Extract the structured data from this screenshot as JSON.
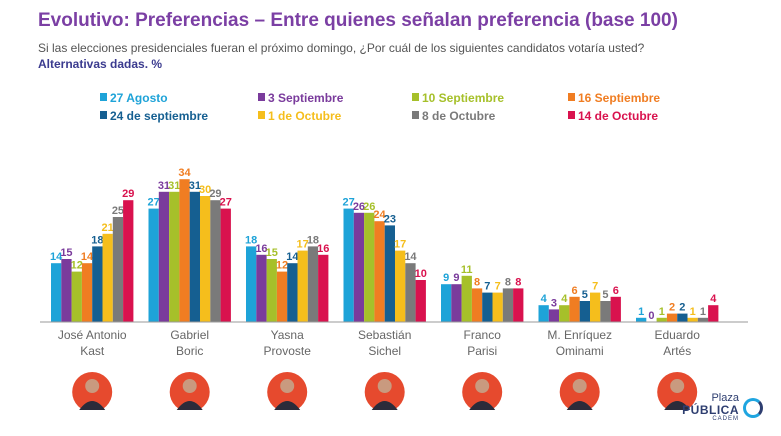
{
  "header": {
    "title": "Evolutivo: Preferencias – Entre quienes señalan preferencia (base 100)",
    "question": "Si las elecciones presidenciales fueran el próximo domingo, ¿Por cuál de los siguientes candidatos votaría usted?",
    "subtitle": "Alternativas dadas. %"
  },
  "logo": {
    "line1": "Plaza",
    "line2": "PÚBLICA",
    "line3": "CADEM"
  },
  "chart_data": {
    "type": "bar",
    "categories": [
      [
        "José Antonio",
        "Kast"
      ],
      [
        "Gabriel",
        "Boric"
      ],
      [
        "Yasna",
        "Provoste"
      ],
      [
        "Sebastián",
        "Sichel"
      ],
      [
        "Franco",
        "Parisi"
      ],
      [
        "M. Enríquez",
        "Ominami"
      ],
      [
        "Eduardo",
        "Artés"
      ]
    ],
    "series": [
      {
        "name": "27 Agosto",
        "color": "#1ea3d8",
        "values": [
          14,
          27,
          18,
          27,
          9,
          4,
          1
        ]
      },
      {
        "name": "3 Septiembre",
        "color": "#7a3b9c",
        "values": [
          15,
          31,
          16,
          26,
          9,
          3,
          0
        ]
      },
      {
        "name": "10 Septiembre",
        "color": "#a6c02a",
        "values": [
          12,
          31,
          15,
          26,
          11,
          4,
          1
        ]
      },
      {
        "name": "16 Septiembre",
        "color": "#f07d22",
        "values": [
          14,
          34,
          12,
          24,
          8,
          6,
          2
        ]
      },
      {
        "name": "24 de septiembre",
        "color": "#155f91",
        "values": [
          18,
          31,
          14,
          23,
          7,
          5,
          2
        ]
      },
      {
        "name": "1 de Octubre",
        "color": "#f5be1c",
        "values": [
          21,
          30,
          17,
          17,
          7,
          7,
          1
        ]
      },
      {
        "name": "8 de Octubre",
        "color": "#7a7a7a",
        "values": [
          25,
          29,
          18,
          14,
          8,
          5,
          1
        ]
      },
      {
        "name": "14 de Octubre",
        "color": "#d9124e",
        "values": [
          29,
          27,
          16,
          10,
          8,
          6,
          4
        ]
      }
    ],
    "legend": "top",
    "grid": false,
    "ylim": [
      0,
      35
    ],
    "xlabel": "",
    "ylabel": ""
  }
}
